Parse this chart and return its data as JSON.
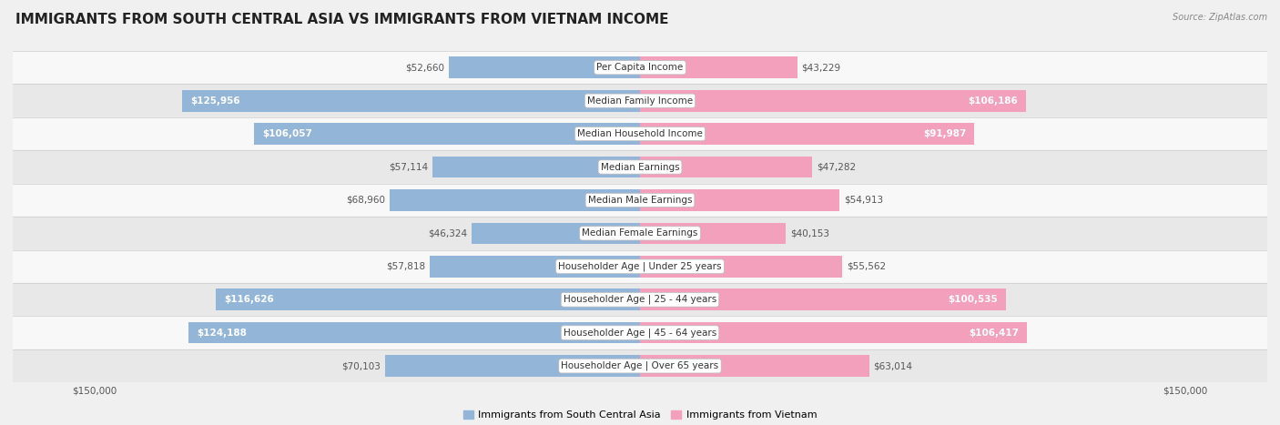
{
  "title": "IMMIGRANTS FROM SOUTH CENTRAL ASIA VS IMMIGRANTS FROM VIETNAM INCOME",
  "source": "Source: ZipAtlas.com",
  "categories": [
    "Per Capita Income",
    "Median Family Income",
    "Median Household Income",
    "Median Earnings",
    "Median Male Earnings",
    "Median Female Earnings",
    "Householder Age | Under 25 years",
    "Householder Age | 25 - 44 years",
    "Householder Age | 45 - 64 years",
    "Householder Age | Over 65 years"
  ],
  "left_values": [
    52660,
    125956,
    106057,
    57114,
    68960,
    46324,
    57818,
    116626,
    124188,
    70103
  ],
  "right_values": [
    43229,
    106186,
    91987,
    47282,
    54913,
    40153,
    55562,
    100535,
    106417,
    63014
  ],
  "left_labels": [
    "$52,660",
    "$125,956",
    "$106,057",
    "$57,114",
    "$68,960",
    "$46,324",
    "$57,818",
    "$116,626",
    "$124,188",
    "$70,103"
  ],
  "right_labels": [
    "$43,229",
    "$106,186",
    "$91,987",
    "$47,282",
    "$54,913",
    "$40,153",
    "$55,562",
    "$100,535",
    "$106,417",
    "$63,014"
  ],
  "max_value": 150000,
  "left_color": "#93b5d8",
  "right_color": "#f2a0bb",
  "left_label_inside_color": "white",
  "right_label_inside_color": "white",
  "outside_label_color": "#555555",
  "inside_threshold": 85000,
  "bar_height": 0.65,
  "fig_bg": "#f0f0f0",
  "row_bg_even": "#f8f8f8",
  "row_bg_odd": "#e8e8e8",
  "legend_left": "Immigrants from South Central Asia",
  "legend_right": "Immigrants from Vietnam",
  "x_tick_label_left": "$150,000",
  "x_tick_label_right": "$150,000",
  "title_fontsize": 11,
  "source_fontsize": 7,
  "label_fontsize": 7.5,
  "category_fontsize": 7.5,
  "legend_fontsize": 8,
  "border_color": "#cccccc"
}
